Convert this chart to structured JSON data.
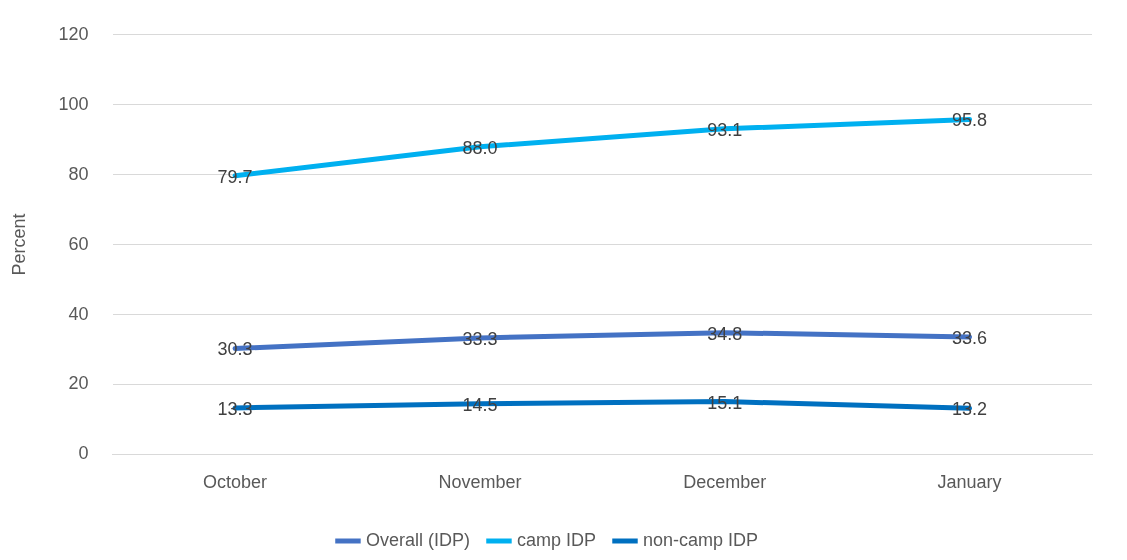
{
  "chart_data": {
    "type": "line",
    "ylabel": "Percent",
    "categories": [
      "October",
      "November",
      "December",
      "January"
    ],
    "series": [
      {
        "name": "Overall (IDP)",
        "color": "#4472c4",
        "values": [
          30.3,
          33.3,
          34.8,
          33.6
        ]
      },
      {
        "name": "camp IDP",
        "color": "#00b0f0",
        "values": [
          79.7,
          88.0,
          93.1,
          95.8
        ]
      },
      {
        "name": "non-camp IDP",
        "color": "#0070c0",
        "values": [
          13.3,
          14.5,
          15.1,
          13.2
        ]
      }
    ],
    "value_labels": [
      [
        "30.3",
        "33.3",
        "34.8",
        "33.6"
      ],
      [
        "79.7",
        "88.0",
        "93.1",
        "95.8"
      ],
      [
        "13.3",
        "14.5",
        "15.1",
        "13.2"
      ]
    ],
    "ylim": [
      0,
      120
    ],
    "yticks": [
      0,
      20,
      40,
      60,
      80,
      100,
      120
    ],
    "grid": "y",
    "legend": "bottom",
    "marker": "none",
    "line_style": "solid"
  }
}
